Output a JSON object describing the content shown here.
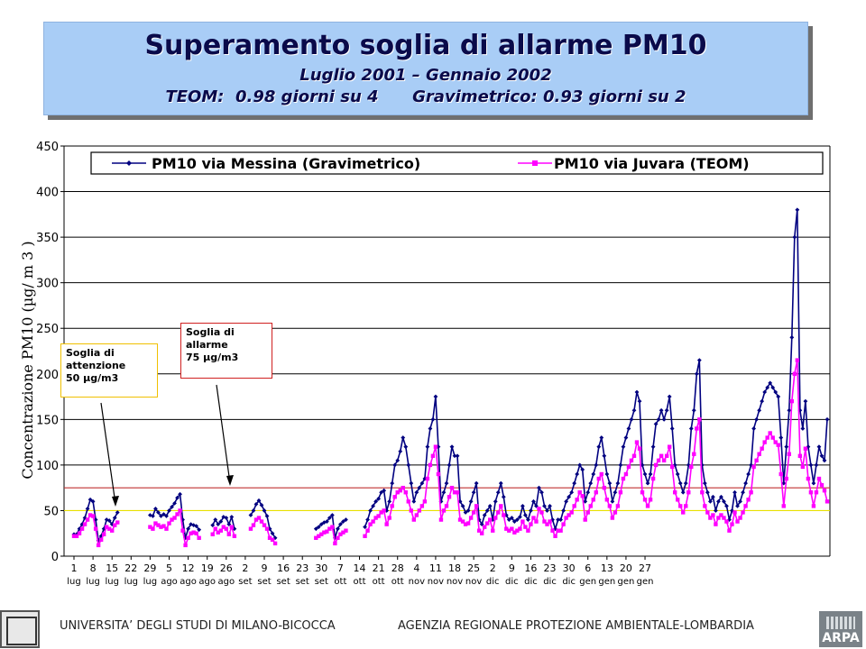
{
  "header": {
    "title": "Superamento soglia di allarme PM10",
    "subtitle1": "Luglio 2001 – Gennaio 2002",
    "subtitle2": "TEOM:  0.98 giorni su 4      Gravimetrico: 0.93 giorni su 2"
  },
  "callouts": {
    "attenzione": [
      "Soglia di",
      "attenzione",
      "50 µg/m3"
    ],
    "allarme": [
      "Soglia di",
      "allarme",
      "75 µg/m3"
    ]
  },
  "footer": {
    "left": "UNIVERSITA’ DEGLI STUDI DI MILANO-BICOCCA",
    "right": "AGENZIA REGIONALE PROTEZIONE AMBIENTALE-LOMBARDIA",
    "logo_right": "ARPA"
  },
  "colors": {
    "messina": "#000080",
    "juvara": "#ff00ff",
    "threshold_attention": "#e8e000",
    "threshold_alarm": "#c03030",
    "gridline": "#000000"
  },
  "chart_data": {
    "type": "line",
    "ylabel": "Concentrazione PM10 (µg/ m 3 )",
    "ylim": [
      0,
      450
    ],
    "yticks": [
      0,
      50,
      100,
      150,
      200,
      250,
      300,
      350,
      400,
      450
    ],
    "grid": true,
    "legend_position": "top",
    "x_tick_labels": [
      [
        "1",
        "lug"
      ],
      [
        "8",
        "lug"
      ],
      [
        "15",
        "lug"
      ],
      [
        "22",
        "lug"
      ],
      [
        "29",
        "lug"
      ],
      [
        "5",
        "ago"
      ],
      [
        "12",
        "ago"
      ],
      [
        "19",
        "ago"
      ],
      [
        "26",
        "ago"
      ],
      [
        "2",
        "set"
      ],
      [
        "9",
        "set"
      ],
      [
        "16",
        "set"
      ],
      [
        "23",
        "set"
      ],
      [
        "30",
        "set"
      ],
      [
        "7",
        "ott"
      ],
      [
        "14",
        "ott"
      ],
      [
        "21",
        "ott"
      ],
      [
        "28",
        "ott"
      ],
      [
        "4",
        "nov"
      ],
      [
        "11",
        "nov"
      ],
      [
        "18",
        "nov"
      ],
      [
        "25",
        "nov"
      ],
      [
        "2",
        "dic"
      ],
      [
        "9",
        "dic"
      ],
      [
        "16",
        "dic"
      ],
      [
        "23",
        "dic"
      ],
      [
        "30",
        "dic"
      ],
      [
        "6",
        "gen"
      ],
      [
        "13",
        "gen"
      ],
      [
        "20",
        "gen"
      ],
      [
        "27",
        "gen"
      ]
    ],
    "x_start": "2001-07-01",
    "thresholds": [
      {
        "name": "Soglia di attenzione",
        "value": 50
      },
      {
        "name": "Soglia di allarme",
        "value": 75
      }
    ],
    "series": [
      {
        "name": "PM10 via Messina (Gravimetrico)",
        "marker": "diamond",
        "values": [
          24,
          24,
          30,
          35,
          42,
          52,
          62,
          60,
          40,
          17,
          22,
          30,
          40,
          39,
          35,
          42,
          48,
          null,
          null,
          null,
          null,
          null,
          null,
          null,
          null,
          null,
          null,
          null,
          45,
          44,
          52,
          48,
          44,
          46,
          44,
          50,
          54,
          58,
          64,
          68,
          40,
          20,
          30,
          35,
          34,
          33,
          29,
          null,
          null,
          null,
          null,
          34,
          40,
          35,
          38,
          43,
          42,
          35,
          43,
          30,
          null,
          null,
          null,
          null,
          null,
          45,
          50,
          57,
          61,
          56,
          50,
          44,
          30,
          25,
          20,
          null,
          null,
          null,
          null,
          null,
          null,
          null,
          null,
          null,
          null,
          null,
          null,
          null,
          null,
          30,
          32,
          35,
          37,
          38,
          42,
          45,
          20,
          30,
          35,
          38,
          40,
          null,
          null,
          null,
          null,
          null,
          null,
          32,
          40,
          50,
          55,
          60,
          63,
          70,
          72,
          50,
          60,
          80,
          100,
          105,
          115,
          130,
          120,
          100,
          80,
          60,
          70,
          75,
          80,
          85,
          120,
          140,
          150,
          175,
          120,
          60,
          70,
          80,
          100,
          120,
          110,
          110,
          60,
          55,
          48,
          50,
          60,
          70,
          80,
          40,
          35,
          45,
          50,
          55,
          40,
          60,
          70,
          80,
          65,
          45,
          40,
          42,
          38,
          40,
          43,
          55,
          45,
          40,
          50,
          60,
          55,
          75,
          70,
          55,
          50,
          55,
          40,
          30,
          40,
          40,
          50,
          60,
          65,
          70,
          80,
          90,
          100,
          95,
          60,
          70,
          80,
          90,
          100,
          120,
          130,
          110,
          90,
          80,
          60,
          70,
          80,
          100,
          120,
          130,
          140,
          150,
          160,
          180,
          170,
          100,
          90,
          80,
          90,
          120,
          145,
          150,
          160,
          150,
          160,
          175,
          140,
          100,
          90,
          80,
          70,
          80,
          100,
          140,
          160,
          200,
          215,
          100,
          80,
          70,
          60,
          65,
          50,
          60,
          65,
          60,
          55,
          40,
          50,
          70,
          55,
          60,
          70,
          80,
          90,
          100,
          140,
          150,
          160,
          170,
          180,
          185,
          190,
          185,
          180,
          175,
          130,
          80,
          120,
          160,
          240,
          350,
          380,
          160,
          140,
          170,
          120,
          100,
          80,
          100,
          120,
          110,
          105,
          150
        ]
      },
      {
        "name": "PM10 via Juvara (TEOM)",
        "marker": "square",
        "values": [
          22,
          22,
          25,
          30,
          35,
          40,
          45,
          44,
          30,
          12,
          18,
          24,
          32,
          30,
          28,
          34,
          37,
          null,
          null,
          null,
          null,
          null,
          null,
          null,
          null,
          null,
          null,
          null,
          32,
          30,
          36,
          34,
          32,
          33,
          30,
          36,
          40,
          42,
          46,
          50,
          28,
          12,
          20,
          25,
          26,
          25,
          20,
          null,
          null,
          null,
          null,
          24,
          30,
          26,
          28,
          32,
          30,
          24,
          32,
          22,
          null,
          null,
          null,
          null,
          null,
          30,
          34,
          40,
          42,
          38,
          34,
          30,
          20,
          18,
          14,
          null,
          null,
          null,
          null,
          null,
          null,
          null,
          null,
          null,
          null,
          null,
          null,
          null,
          null,
          20,
          22,
          24,
          26,
          27,
          30,
          32,
          14,
          20,
          24,
          26,
          28,
          null,
          null,
          null,
          null,
          null,
          null,
          22,
          28,
          35,
          38,
          42,
          44,
          48,
          50,
          35,
          42,
          55,
          65,
          70,
          72,
          75,
          70,
          60,
          50,
          40,
          45,
          50,
          55,
          60,
          85,
          100,
          110,
          120,
          90,
          40,
          50,
          55,
          65,
          75,
          70,
          70,
          40,
          38,
          35,
          36,
          42,
          48,
          55,
          28,
          25,
          32,
          36,
          40,
          28,
          42,
          48,
          55,
          45,
          30,
          28,
          30,
          26,
          28,
          30,
          38,
          32,
          28,
          35,
          42,
          38,
          52,
          48,
          38,
          35,
          38,
          28,
          22,
          28,
          28,
          35,
          42,
          45,
          48,
          55,
          62,
          70,
          66,
          40,
          48,
          55,
          62,
          70,
          85,
          90,
          75,
          62,
          55,
          42,
          48,
          55,
          70,
          85,
          90,
          98,
          105,
          110,
          125,
          118,
          70,
          62,
          55,
          62,
          85,
          100,
          105,
          110,
          105,
          110,
          120,
          98,
          70,
          62,
          55,
          48,
          55,
          70,
          98,
          112,
          140,
          150,
          70,
          55,
          48,
          42,
          45,
          35,
          42,
          45,
          42,
          38,
          28,
          35,
          48,
          38,
          42,
          48,
          55,
          62,
          70,
          98,
          105,
          112,
          118,
          125,
          130,
          135,
          130,
          125,
          122,
          90,
          55,
          85,
          112,
          170,
          200,
          215,
          110,
          98,
          118,
          85,
          70,
          55,
          70,
          85,
          78,
          72,
          60
        ]
      }
    ]
  }
}
